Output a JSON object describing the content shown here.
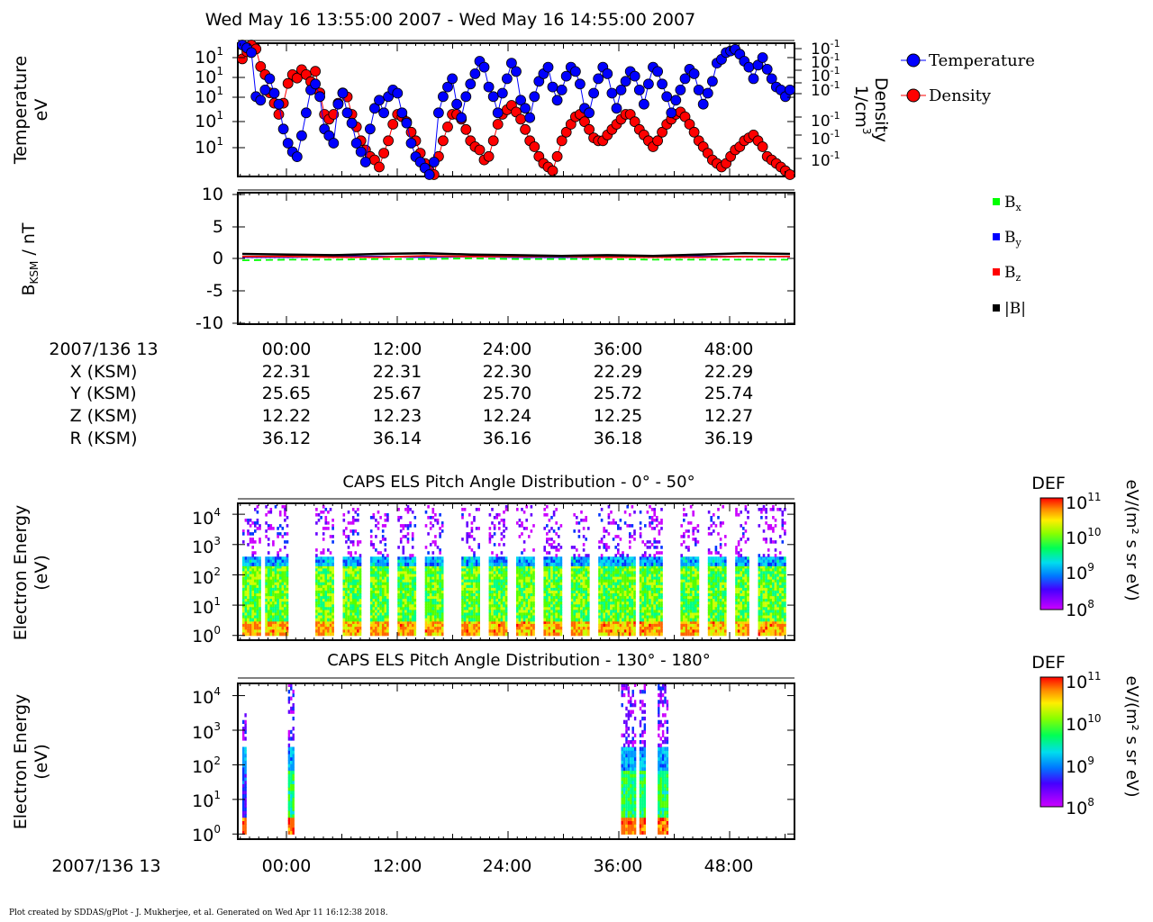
{
  "title": "Wed May 16 13:55:00 2007 - Wed May 16 14:55:00 2007",
  "footer": "Plot created by SDDAS/gPlot - J. Mukherjee, et al.  Generated on Wed Apr 11 16:12:38 2018.",
  "panel1": {
    "ylabel_line1": "Temperature",
    "ylabel_line2": "eV",
    "yticks": [
      "10",
      "10",
      "10",
      "10",
      "10"
    ],
    "ytick_exp": "1",
    "y2label_line1": "Density",
    "y2label_line2": "1/cm",
    "y2label_exp": "3",
    "y2ticks": [
      "10",
      "10",
      "10",
      "10",
      "10",
      "10",
      "10"
    ],
    "y2tick_exp": "-1",
    "legend": [
      {
        "label": "Temperature",
        "color": "#0000ff"
      },
      {
        "label": "Density",
        "color": "#ff0000"
      }
    ]
  },
  "panel2": {
    "ylabel_main": "B",
    "ylabel_sub": "KSM",
    "ylabel_rest": " / nT",
    "yticks": [
      "10",
      "5",
      "0",
      "-5",
      "-10"
    ],
    "legend": [
      {
        "main": "B",
        "sub": "x",
        "color": "#00ff00"
      },
      {
        "main": "B",
        "sub": "y",
        "color": "#0000ff"
      },
      {
        "main": "B",
        "sub": "z",
        "color": "#ff0000"
      },
      {
        "main": "|B|",
        "sub": "",
        "color": "#000000"
      }
    ]
  },
  "ephemeris": {
    "header": "2007/136 13",
    "times": [
      "00:00",
      "12:00",
      "24:00",
      "36:00",
      "48:00"
    ],
    "rows": [
      {
        "label": "X (KSM)",
        "values": [
          "22.31",
          "22.31",
          "22.30",
          "22.29",
          "22.29"
        ]
      },
      {
        "label": "Y (KSM)",
        "values": [
          "25.65",
          "25.67",
          "25.70",
          "25.72",
          "25.74"
        ]
      },
      {
        "label": "Z (KSM)",
        "values": [
          "12.22",
          "12.23",
          "12.24",
          "12.25",
          "12.27"
        ]
      },
      {
        "label": "R (KSM)",
        "values": [
          "36.12",
          "36.14",
          "36.16",
          "36.18",
          "36.19"
        ]
      }
    ]
  },
  "panel3": {
    "title": "CAPS ELS Pitch Angle Distribution - 0° - 50°",
    "ylabel_line1": "Electron Energy",
    "ylabel_line2": "(eV)",
    "yticks": [
      {
        "base": "10",
        "exp": "4"
      },
      {
        "base": "10",
        "exp": "3"
      },
      {
        "base": "10",
        "exp": "2"
      },
      {
        "base": "10",
        "exp": "1"
      },
      {
        "base": "10",
        "exp": "0"
      }
    ],
    "cbar_title": "DEF",
    "cbar_unit": "eV/(m² s sr eV)",
    "cbar_ticks": [
      {
        "base": "10",
        "exp": "11"
      },
      {
        "base": "10",
        "exp": "10"
      },
      {
        "base": "10",
        "exp": "9"
      },
      {
        "base": "10",
        "exp": "8"
      }
    ]
  },
  "panel4": {
    "title": "CAPS ELS Pitch Angle Distribution - 130° - 180°",
    "ylabel_line1": "Electron Energy",
    "ylabel_line2": "(eV)",
    "yticks": [
      {
        "base": "10",
        "exp": "4"
      },
      {
        "base": "10",
        "exp": "3"
      },
      {
        "base": "10",
        "exp": "2"
      },
      {
        "base": "10",
        "exp": "1"
      },
      {
        "base": "10",
        "exp": "0"
      }
    ],
    "cbar_title": "DEF",
    "cbar_unit": "eV/(m² s sr eV)",
    "cbar_ticks": [
      {
        "base": "10",
        "exp": "11"
      },
      {
        "base": "10",
        "exp": "10"
      },
      {
        "base": "10",
        "exp": "9"
      },
      {
        "base": "10",
        "exp": "8"
      }
    ],
    "xaxis_header": "2007/136 13",
    "xticks": [
      "00:00",
      "12:00",
      "24:00",
      "36:00",
      "48:00"
    ]
  },
  "chart_data": [
    {
      "type": "line",
      "x_unit": "minutes after 2007-05-16 13:55 (tick labels are minutes past 13:00 UT)",
      "x": [
        0,
        0.5,
        1,
        1.5,
        2,
        2.5,
        3,
        3.5,
        4,
        4.5,
        5,
        5.5,
        6,
        6.5,
        7,
        7.5,
        8,
        8.5,
        9,
        9.5,
        10,
        10.5,
        11,
        11.5,
        12,
        12.5,
        13,
        13.5,
        14,
        14.5,
        15,
        15.5,
        16,
        16.5,
        17,
        17.5,
        18,
        18.5,
        19,
        19.5,
        20,
        20.5,
        21,
        21.5,
        22,
        22.5,
        23,
        23.5,
        24,
        24.5,
        25,
        25.5,
        26,
        26.5,
        27,
        27.5,
        28,
        28.5,
        29,
        29.5,
        30,
        30.5,
        31,
        31.5,
        32,
        32.5,
        33,
        33.5,
        34,
        34.5,
        35,
        35.5,
        36,
        36.5,
        37,
        37.5,
        38,
        38.5,
        39,
        39.5,
        40,
        40.5,
        41,
        41.5,
        42,
        42.5,
        43,
        43.5,
        44,
        44.5,
        45,
        45.5,
        46,
        46.5,
        47,
        47.5,
        48,
        48.5,
        49,
        49.5,
        50,
        50.5,
        51,
        51.5,
        52,
        52.5,
        53,
        53.5,
        54,
        54.5,
        55,
        55.5,
        56,
        56.5,
        57,
        57.5,
        58,
        58.5,
        59,
        59.5,
        60
      ],
      "series": [
        {
          "name": "Temperature",
          "color": "#0000ff",
          "values": [
            40,
            38,
            35,
            16,
            15,
            18,
            22,
            17,
            14,
            9,
            7,
            6,
            5.5,
            8,
            12,
            18,
            20,
            16,
            9,
            8,
            7,
            14,
            17,
            12,
            10,
            7,
            6,
            5,
            9,
            13,
            15,
            12,
            16,
            18,
            17,
            12,
            10,
            7,
            5.5,
            5,
            4.5,
            4,
            5,
            12,
            16,
            19,
            22,
            14,
            11,
            16,
            20,
            24,
            30,
            27,
            19,
            16,
            12,
            17,
            22,
            29,
            25,
            15,
            13,
            11,
            16,
            21,
            24,
            27,
            19,
            15,
            18,
            23,
            27,
            25,
            20,
            13,
            12,
            17,
            22,
            27,
            24,
            17,
            13,
            18,
            21,
            25,
            23,
            18,
            14,
            20,
            27,
            25,
            20,
            16,
            12,
            15,
            18,
            22,
            26,
            24,
            18,
            14,
            17,
            21,
            29,
            31,
            35,
            36,
            37,
            34,
            30,
            27,
            22,
            28,
            32,
            26,
            22,
            19,
            18,
            16,
            18
          ]
        },
        {
          "name": "Density",
          "color": "#ff0000",
          "values": [
            0.08,
            0.085,
            0.09,
            0.087,
            0.075,
            0.07,
            0.06,
            0.055,
            0.05,
            0.055,
            0.065,
            0.07,
            0.068,
            0.073,
            0.07,
            0.066,
            0.072,
            0.06,
            0.05,
            0.048,
            0.05,
            0.055,
            0.06,
            0.058,
            0.05,
            0.045,
            0.04,
            0.037,
            0.035,
            0.034,
            0.032,
            0.036,
            0.04,
            0.046,
            0.05,
            0.049,
            0.047,
            0.043,
            0.04,
            0.036,
            0.033,
            0.031,
            0.03,
            0.035,
            0.04,
            0.045,
            0.05,
            0.05,
            0.048,
            0.044,
            0.04,
            0.038,
            0.037,
            0.034,
            0.035,
            0.04,
            0.046,
            0.05,
            0.052,
            0.054,
            0.051,
            0.048,
            0.044,
            0.04,
            0.038,
            0.035,
            0.033,
            0.032,
            0.031,
            0.035,
            0.04,
            0.043,
            0.046,
            0.049,
            0.05,
            0.047,
            0.044,
            0.041,
            0.04,
            0.04,
            0.042,
            0.044,
            0.046,
            0.048,
            0.05,
            0.05,
            0.047,
            0.044,
            0.042,
            0.04,
            0.038,
            0.04,
            0.043,
            0.046,
            0.048,
            0.05,
            0.051,
            0.049,
            0.046,
            0.043,
            0.04,
            0.038,
            0.036,
            0.034,
            0.033,
            0.032,
            0.033,
            0.035,
            0.037,
            0.038,
            0.04,
            0.041,
            0.042,
            0.04,
            0.038,
            0.035,
            0.034,
            0.033,
            0.032,
            0.031,
            0.03
          ]
        }
      ],
      "ylabel": "Temperature eV",
      "y2label": "Density 1/cm3",
      "yscale": "log",
      "legend_position": "right, outside plot"
    },
    {
      "type": "line",
      "x_unit": "minutes after 2007-05-16 13:55",
      "x": [
        0,
        5,
        10,
        15,
        20,
        25,
        30,
        35,
        40,
        45,
        50,
        55,
        60
      ],
      "series": [
        {
          "name": "Bx",
          "color": "#00ff00",
          "values": [
            -0.3,
            -0.2,
            -0.2,
            -0.1,
            -0.1,
            0,
            -0.1,
            -0.1,
            -0.1,
            -0.2,
            -0.2,
            -0.2,
            -0.2
          ]
        },
        {
          "name": "By",
          "color": "#0000ff",
          "values": [
            0.2,
            0.2,
            0.3,
            0.3,
            0.2,
            0.3,
            0.2,
            0.2,
            0.2,
            0.2,
            0.3,
            0.3,
            0.3
          ]
        },
        {
          "name": "Bz",
          "color": "#ff0000",
          "values": [
            0.3,
            0.3,
            0.2,
            0.2,
            0.4,
            0.3,
            0.3,
            0.3,
            0.2,
            0.2,
            0.2,
            0.3,
            0.3
          ]
        },
        {
          "name": "|B|",
          "color": "#000000",
          "values": [
            0.7,
            0.6,
            0.5,
            0.7,
            0.8,
            0.6,
            0.5,
            0.4,
            0.5,
            0.4,
            0.6,
            0.8,
            0.7
          ]
        }
      ],
      "ylabel": "BKSM / nT",
      "ylim": [
        -10,
        10
      ],
      "legend_position": "right, outside plot"
    },
    {
      "type": "heatmap",
      "title": "CAPS ELS Pitch Angle Distribution - 0° - 50°",
      "ylabel": "Electron Energy (eV)",
      "yscale": "log",
      "ylim": [
        0.8,
        20000
      ],
      "zlabel": "DEF eV/(m² s sr eV)",
      "zlim": [
        100000000.0,
        100000000000.0
      ],
      "data_intervals_minutes": [
        [
          0,
          2
        ],
        [
          2.5,
          5
        ],
        [
          8,
          10
        ],
        [
          11,
          13
        ],
        [
          14,
          16
        ],
        [
          17,
          19
        ],
        [
          20,
          22
        ],
        [
          24,
          26
        ],
        [
          27,
          29
        ],
        [
          30,
          32
        ],
        [
          33,
          35
        ],
        [
          36,
          38
        ],
        [
          39,
          43
        ],
        [
          43.5,
          46
        ],
        [
          48,
          50
        ],
        [
          51,
          53
        ],
        [
          54,
          55.5
        ],
        [
          56.5,
          59.5
        ]
      ],
      "band_levels": [
        {
          "energy_range": [
            1,
            3
          ],
          "def": 30000000000.0
        },
        {
          "energy_range": [
            3,
            200
          ],
          "def": 6000000000.0
        },
        {
          "energy_range": [
            200,
            400
          ],
          "def": 1000000000.0
        },
        {
          "energy_range": [
            400,
            20000
          ],
          "def": 150000000.0
        }
      ]
    },
    {
      "type": "heatmap",
      "title": "CAPS ELS Pitch Angle Distribution - 130° - 180°",
      "ylabel": "Electron Energy (eV)",
      "yscale": "log",
      "ylim": [
        0.8,
        20000
      ],
      "zlabel": "DEF eV/(m² s sr eV)",
      "zlim": [
        100000000.0,
        100000000000.0
      ],
      "data_intervals_minutes": [
        [
          0,
          0.3
        ],
        [
          5,
          5.5
        ],
        [
          41.5,
          43
        ],
        [
          43.5,
          44
        ],
        [
          45.5,
          46.5
        ]
      ]
    }
  ]
}
